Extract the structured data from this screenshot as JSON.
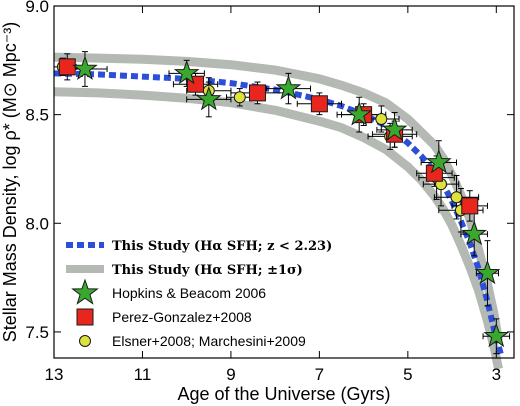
{
  "chart_data": {
    "type": "scatter",
    "xlabel": "Age of the Universe (Gyrs)",
    "ylabel": "Stellar Mass Density, log ρ* (M⊙ Mpc⁻³)",
    "xlim": [
      13,
      2.6
    ],
    "ylim": [
      7.38,
      9.0
    ],
    "x_ticks": [
      13,
      11,
      9,
      7,
      5,
      3
    ],
    "y_ticks": [
      7.5,
      8.0,
      8.5,
      9.0
    ],
    "y_tick_labels": [
      "7.5",
      "8.0",
      "8.5",
      "9.0"
    ],
    "x_axis_direction": "decreasing",
    "grid": false,
    "legend_position": "lower-left",
    "model": {
      "name": "This Study (Hα SFH; z < 2.23)",
      "style": "dashed",
      "color": "#2b4fd8",
      "x": [
        13,
        12,
        11,
        10,
        9,
        8,
        7,
        6.5,
        6,
        5.5,
        5,
        4.7,
        4.4,
        4.2,
        4.0,
        3.8,
        3.6,
        3.4,
        3.2,
        3.05,
        2.9
      ],
      "y": [
        8.69,
        8.685,
        8.675,
        8.665,
        8.645,
        8.615,
        8.57,
        8.54,
        8.5,
        8.45,
        8.37,
        8.31,
        8.24,
        8.18,
        8.1,
        8.01,
        7.91,
        7.79,
        7.64,
        7.51,
        7.4
      ]
    },
    "band": {
      "name": "This Study (Hα SFH; ±1σ)",
      "color": "#b4b9b3",
      "x": [
        13,
        12,
        11,
        10,
        9,
        8,
        7,
        6.5,
        6,
        5.5,
        5,
        4.7,
        4.4,
        4.2,
        4.0,
        3.8,
        3.6,
        3.4,
        3.2,
        3.05,
        2.95
      ],
      "upper": [
        8.765,
        8.76,
        8.755,
        8.745,
        8.73,
        8.705,
        8.665,
        8.635,
        8.6,
        8.555,
        8.48,
        8.42,
        8.36,
        8.3,
        8.22,
        8.13,
        8.02,
        7.88,
        7.72,
        7.58,
        7.46
      ],
      "lower": [
        8.605,
        8.6,
        8.59,
        8.575,
        8.555,
        8.52,
        8.47,
        8.44,
        8.395,
        8.34,
        8.26,
        8.2,
        8.125,
        8.065,
        7.99,
        7.9,
        7.8,
        7.69,
        7.55,
        7.43,
        7.33
      ]
    },
    "series": [
      {
        "name": "Hopkins & Beacom 2006",
        "marker": "star",
        "color": "#3aa82e",
        "points": [
          {
            "x": 12.3,
            "y": 8.71,
            "xerr": 0.5,
            "yerr": 0.08
          },
          {
            "x": 10.0,
            "y": 8.69,
            "xerr": 0.4,
            "yerr": 0.06
          },
          {
            "x": 9.5,
            "y": 8.57,
            "xerr": 0.5,
            "yerr": 0.08
          },
          {
            "x": 7.7,
            "y": 8.62,
            "xerr": 0.5,
            "yerr": 0.07
          },
          {
            "x": 6.1,
            "y": 8.5,
            "xerr": 0.5,
            "yerr": 0.08
          },
          {
            "x": 5.3,
            "y": 8.43,
            "xerr": 0.4,
            "yerr": 0.08
          },
          {
            "x": 4.3,
            "y": 8.28,
            "xerr": 0.4,
            "yerr": 0.1
          },
          {
            "x": 3.5,
            "y": 7.95,
            "xerr": 0.3,
            "yerr": 0.1
          },
          {
            "x": 3.2,
            "y": 7.77,
            "xerr": 0.25,
            "yerr": 0.15
          },
          {
            "x": 3.0,
            "y": 7.48,
            "xerr": 0.3,
            "yerr": 0.08
          }
        ]
      },
      {
        "name": "Perez-Gonzalez+2008",
        "marker": "square",
        "color": "#e8261e",
        "points": [
          {
            "x": 12.7,
            "y": 8.72,
            "xerr": 0.2,
            "yerr": 0.06
          },
          {
            "x": 9.8,
            "y": 8.64,
            "xerr": 0.5,
            "yerr": 0.05
          },
          {
            "x": 8.4,
            "y": 8.6,
            "xerr": 0.6,
            "yerr": 0.05
          },
          {
            "x": 7.0,
            "y": 8.55,
            "xerr": 0.5,
            "yerr": 0.05
          },
          {
            "x": 6.0,
            "y": 8.5,
            "xerr": 0.5,
            "yerr": 0.05
          },
          {
            "x": 5.3,
            "y": 8.41,
            "xerr": 0.5,
            "yerr": 0.06
          },
          {
            "x": 4.4,
            "y": 8.23,
            "xerr": 0.4,
            "yerr": 0.06
          },
          {
            "x": 3.6,
            "y": 8.08,
            "xerr": 0.4,
            "yerr": 0.07
          }
        ]
      },
      {
        "name": "Elsner+2008; Marchesini+2009",
        "marker": "circle",
        "color": "#dde33c",
        "points": [
          {
            "x": 12.8,
            "y": 8.72,
            "xerr": 0.2,
            "yerr": 0.04
          },
          {
            "x": 9.5,
            "y": 8.61,
            "xerr": 0.5,
            "yerr": 0.06
          },
          {
            "x": 8.8,
            "y": 8.58,
            "xerr": 0.3,
            "yerr": 0.04
          },
          {
            "x": 5.6,
            "y": 8.48,
            "xerr": 0.4,
            "yerr": 0.06
          },
          {
            "x": 5.4,
            "y": 8.4,
            "xerr": 0.5,
            "yerr": 0.06
          },
          {
            "x": 4.35,
            "y": 8.21,
            "xerr": 0.4,
            "yerr": 0.1
          },
          {
            "x": 4.25,
            "y": 8.18,
            "xerr": 0.4,
            "yerr": 0.1
          },
          {
            "x": 3.9,
            "y": 8.12,
            "xerr": 0.5,
            "yerr": 0.1
          },
          {
            "x": 3.8,
            "y": 8.06,
            "xerr": 0.5,
            "yerr": 0.1
          }
        ]
      }
    ]
  },
  "legend": [
    {
      "label": "This Study (Hα SFH; z < 2.23)",
      "kind": "dashed-line",
      "bold": true
    },
    {
      "label": "This Study (Hα SFH; ±1σ)",
      "kind": "band-line",
      "bold": true
    },
    {
      "label": "Hopkins & Beacom 2006",
      "kind": "star",
      "bold": false
    },
    {
      "label": "Perez-Gonzalez+2008",
      "kind": "square",
      "bold": false
    },
    {
      "label": "Elsner+2008; Marchesini+2009",
      "kind": "circle",
      "bold": false
    }
  ]
}
